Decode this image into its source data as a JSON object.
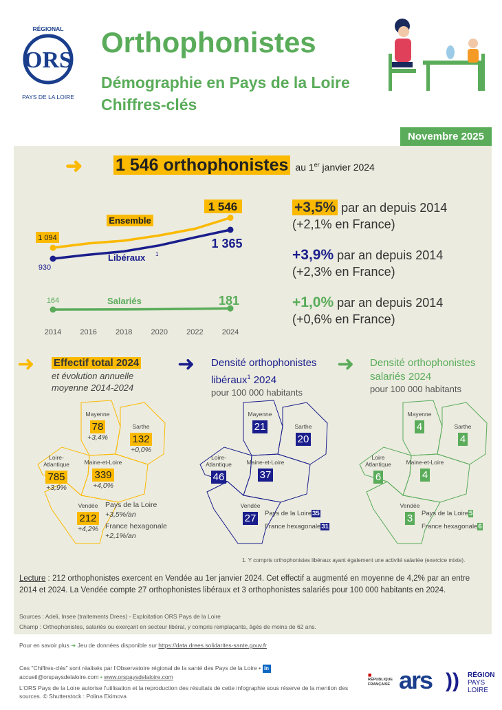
{
  "header": {
    "logo_text": "OBSERVATOIRE RÉGIONAL DE LA SANTÉ",
    "logo_sub": "PAYS DE LA LOIRE",
    "logo_mark": "ORS",
    "title": "Orthophonistes",
    "subtitle1": "Démographie en Pays de la Loire",
    "subtitle2": "Chiffres-clés",
    "date": "Novembre 2025"
  },
  "headline": {
    "value": "1 546 orthophonistes",
    "suffix": "au 1",
    "sup": "er",
    "suffix2": " janvier 2024"
  },
  "chart_data": {
    "type": "line",
    "x": [
      2014,
      2016,
      2018,
      2020,
      2022,
      2024
    ],
    "xticks": [
      "2014",
      "2016",
      "2018",
      "2020",
      "2022",
      "2024"
    ],
    "series": [
      {
        "name": "Ensemble",
        "color": "#fbb900",
        "values": [
          1094,
          1160,
          1200,
          1280,
          1380,
          1546
        ],
        "start_label": "1 094",
        "end_label": "1 546"
      },
      {
        "name": "Libéraux",
        "sup": "1",
        "color": "#1a1e8c",
        "values": [
          930,
          990,
          1040,
          1130,
          1250,
          1365
        ],
        "start_label": "930",
        "end_label": "1 365"
      },
      {
        "name": "Salariés",
        "color": "#5aac5a",
        "values": [
          164,
          165,
          166,
          170,
          175,
          181
        ],
        "start_label": "164",
        "end_label": "181"
      }
    ]
  },
  "stats": [
    {
      "value": "+3,5%",
      "text": " par an depuis 2014",
      "france": "(+2,1% en France)",
      "color": "#fbb900"
    },
    {
      "value": "+3,9%",
      "text": " par an depuis 2014",
      "france": "(+2,3% en France)",
      "color": "#1a1e8c"
    },
    {
      "value": "+1,0%",
      "text": " par an depuis 2014",
      "france": "(+0,6% en France)",
      "color": "#5aac5a"
    }
  ],
  "sections": [
    {
      "title": "Effectif total 2024",
      "sub1": "et évolution annuelle",
      "sub2": "moyenne 2014-2024"
    },
    {
      "title1": "Densité orthophonistes",
      "title2": "libéraux",
      "sup": "1",
      "title3": " 2024",
      "sub": "pour 100 000 habitants"
    },
    {
      "title1": "Densité orthophonistes",
      "title2": "salariés 2024",
      "sub": "pour 100 000 habitants"
    }
  ],
  "maps": [
    {
      "color": "#fbb900",
      "depts": [
        {
          "name": "Mayenne",
          "value": "78",
          "evol": "+3,4%"
        },
        {
          "name": "Sarthe",
          "value": "132",
          "evol": "+0,0%"
        },
        {
          "name": "Loire-\nAtlantique",
          "value": "785",
          "evol": "+3,9%"
        },
        {
          "name": "Maine-et-Loire",
          "value": "339",
          "evol": "+4,0%"
        },
        {
          "name": "Vendée",
          "value": "212",
          "evol": "+4,2%"
        }
      ],
      "region": "Pays de la Loire",
      "region_val": "+3,5%/an",
      "france": "France hexagonale",
      "france_val": "+2,1%/an"
    },
    {
      "color": "#1a1e8c",
      "depts": [
        {
          "name": "Mayenne",
          "value": "21"
        },
        {
          "name": "Sarthe",
          "value": "20"
        },
        {
          "name": "Loire-\nAtlantique",
          "value": "46"
        },
        {
          "name": "Maine-et-Loire",
          "value": "37"
        },
        {
          "name": "Vendée",
          "value": "27"
        }
      ],
      "region": "Pays de la Loire",
      "region_val": "35",
      "france": "France hexagonale",
      "france_val": "31"
    },
    {
      "color": "#5aac5a",
      "depts": [
        {
          "name": "Mayenne",
          "value": "4"
        },
        {
          "name": "Sarthe",
          "value": "4"
        },
        {
          "name": "Loire\nAtlantique",
          "value": "6"
        },
        {
          "name": "Maine-et-Loire",
          "value": "4"
        },
        {
          "name": "Vendée",
          "value": "3"
        }
      ],
      "region": "Pays de la Loire",
      "region_val": "5",
      "france": "France hexagonale",
      "france_val": "6"
    }
  ],
  "footnote": "1. Y compris orthophonistes libéraux ayant également une activité salariée (exercice mixte).",
  "lecture": {
    "label": "Lecture",
    "text": " : 212 orthophonistes exercent en Vendée au 1er janvier 2024. Cet effectif a augmenté en moyenne de 4,2% par an entre 2014 et 2024. La Vendée compte 27 orthophonistes libéraux et 3 orthophonistes salariés pour 100 000 habitants en 2024."
  },
  "sources": "Sources : Adeli, Insee (traitements Drees) - Exploitation ORS Pays de la Loire",
  "champ": "Champ : Orthophonistes, salariés ou exerçant en secteur libéral, y compris remplaçants, âgés de moins de 62 ans.",
  "more": {
    "text": "Pour en savoir plus",
    "arrow": "➔",
    "text2": " Jeu de données disponible sur ",
    "link": "https://data.drees.solidarites-sante.gouv.fr"
  },
  "credits": {
    "line1": "Ces \"Chiffres-clés\" sont réalisés par l'Observatoire régional de la santé des Pays de la Loire •",
    "email": "accueil@orspaysdelaloire.com",
    "sep": " • ",
    "web": "www.orspaysdelaloire.com",
    "line3": "L'ORS Pays de la Loire autorise l'utilisation et la reproduction des résultats de cette infographie sous réserve de la mention des sources. © Shutterstock : Polina Ekimova"
  },
  "partners": {
    "rf": "RÉPUBLIQUE FRANÇAISE",
    "ars": "ars",
    "region1": "RÉGION",
    "region2": "PAYS",
    "region3": "LOIRE"
  }
}
